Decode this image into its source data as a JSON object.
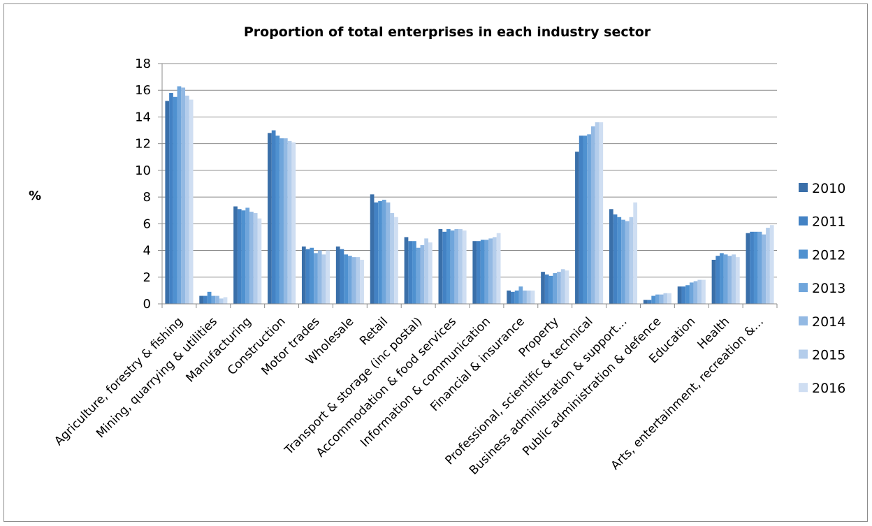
{
  "chart_data": {
    "type": "bar",
    "title": "Proportion of total enterprises in each industry sector",
    "ylabel": "%",
    "ylim": [
      0,
      18
    ],
    "yticks": [
      0,
      2,
      4,
      6,
      8,
      10,
      12,
      14,
      16,
      18
    ],
    "grid": true,
    "legend_position": "right",
    "categories": [
      "Agriculture, forestry & fishing",
      "Mining, quarrying & utilities",
      "Manufacturing",
      "Construction",
      "Motor trades",
      "Wholesale",
      "Retail",
      "Transport & storage (inc postal)",
      "Accommodation & food services",
      "Information & communication",
      "Financial & insurance",
      "Property",
      "Professional, scientific & technical",
      "Business administration & support…",
      "Public administration & defence",
      "Education",
      "Health",
      "Arts, entertainment, recreation &…"
    ],
    "series": [
      {
        "name": "2010",
        "color": "#3a6fa9",
        "values": [
          15.2,
          0.6,
          7.3,
          12.8,
          4.3,
          4.3,
          8.2,
          5.0,
          5.6,
          4.7,
          1.0,
          2.4,
          11.4,
          7.1,
          0.3,
          1.3,
          3.3,
          5.3
        ]
      },
      {
        "name": "2011",
        "color": "#4382c4",
        "values": [
          15.8,
          0.6,
          7.1,
          13.0,
          4.1,
          4.1,
          7.6,
          4.7,
          5.4,
          4.7,
          0.9,
          2.2,
          12.6,
          6.7,
          0.3,
          1.3,
          3.6,
          5.4
        ]
      },
      {
        "name": "2012",
        "color": "#4f91d0",
        "values": [
          15.5,
          0.9,
          7.0,
          12.6,
          4.2,
          3.7,
          7.7,
          4.7,
          5.6,
          4.8,
          1.0,
          2.1,
          12.6,
          6.5,
          0.6,
          1.4,
          3.8,
          5.4
        ]
      },
      {
        "name": "2013",
        "color": "#6fa5db",
        "values": [
          16.3,
          0.6,
          7.2,
          12.4,
          3.8,
          3.6,
          7.8,
          4.2,
          5.5,
          4.8,
          1.3,
          2.3,
          12.7,
          6.3,
          0.7,
          1.6,
          3.7,
          5.4
        ]
      },
      {
        "name": "2014",
        "color": "#93b9e3",
        "values": [
          16.2,
          0.6,
          6.9,
          12.4,
          4.0,
          3.5,
          7.6,
          4.4,
          5.6,
          4.9,
          1.0,
          2.4,
          13.3,
          6.2,
          0.7,
          1.7,
          3.6,
          5.2
        ]
      },
      {
        "name": "2015",
        "color": "#b4cdeb",
        "values": [
          15.6,
          0.4,
          6.8,
          12.2,
          3.7,
          3.5,
          6.8,
          4.9,
          5.6,
          5.0,
          1.0,
          2.6,
          13.6,
          6.5,
          0.8,
          1.8,
          3.7,
          5.7
        ]
      },
      {
        "name": "2016",
        "color": "#cfdef2",
        "values": [
          15.3,
          0.5,
          6.4,
          12.1,
          4.0,
          3.3,
          6.5,
          4.6,
          5.5,
          5.3,
          1.0,
          2.5,
          13.6,
          7.6,
          0.8,
          1.8,
          3.5,
          5.9
        ]
      }
    ]
  }
}
